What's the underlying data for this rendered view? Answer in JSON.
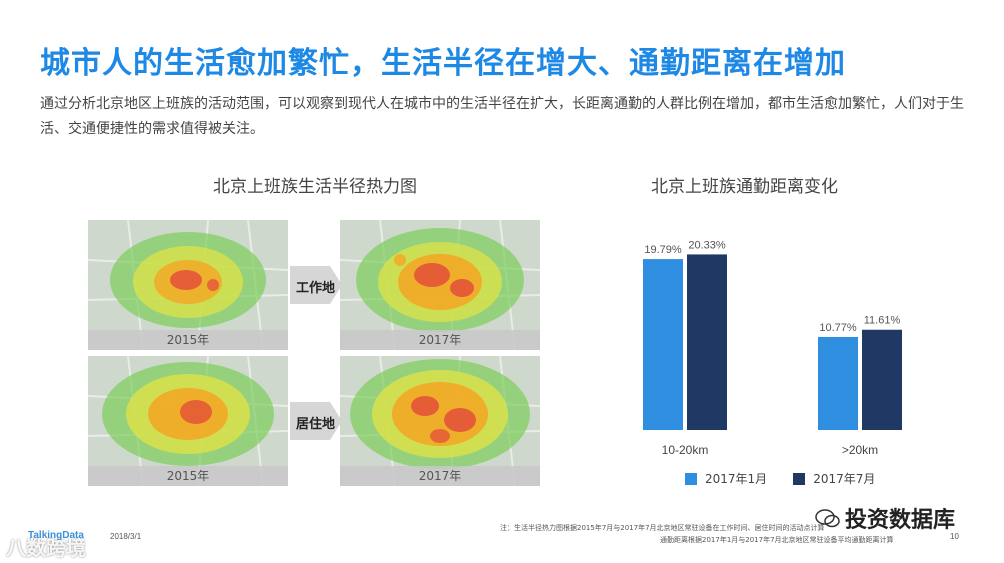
{
  "header": {
    "title": "城市人的生活愈加繁忙，生活半径在增大、通勤距离在增加",
    "subtitle": "通过分析北京地区上班族的活动范围，可以观察到现代人在城市中的生活半径在扩大，长距离通勤的人群比例在增加，都市生活愈加繁忙，人们对于生活、交通便捷性的需求值得被关注。"
  },
  "heatmap_section": {
    "title": "北京上班族生活半径热力图",
    "arrow_work": "工作地",
    "arrow_home": "居住地",
    "tiles": [
      {
        "year": "2015年"
      },
      {
        "year": "2017年"
      },
      {
        "year": "2015年"
      },
      {
        "year": "2017年"
      }
    ]
  },
  "chart_data": {
    "type": "bar",
    "title": "北京上班族通勤距离变化",
    "categories": [
      "10-20km",
      ">20km"
    ],
    "series": [
      {
        "name": "2017年1月",
        "values": [
          19.79,
          10.77
        ],
        "labels": [
          "19.79%",
          "10.77%"
        ],
        "color": "#2f8ee0"
      },
      {
        "name": "2017年7月",
        "values": [
          20.33,
          11.61
        ],
        "labels": [
          "20.33%",
          "11.61%"
        ],
        "color": "#1f3864"
      }
    ],
    "ylim": [
      0,
      22
    ],
    "grid": false,
    "legend": "bottom"
  },
  "footer": {
    "logo": "TalkingData",
    "date": "2018/3/1",
    "note_line1": "注：生活半径热力图根据2015年7月与2017年7月北京地区常驻设备在工作时间、居住时间的活动点计算",
    "note_line2": "通勤距离根据2017年1月与2017年7月北京地区常驻设备平均通勤距离计算",
    "page": "10",
    "watermark_left": "八数跨境",
    "watermark_right": "投资数据库"
  },
  "colors": {
    "accent": "#1e88e5",
    "series1": "#2f8ee0",
    "series2": "#1f3864"
  }
}
